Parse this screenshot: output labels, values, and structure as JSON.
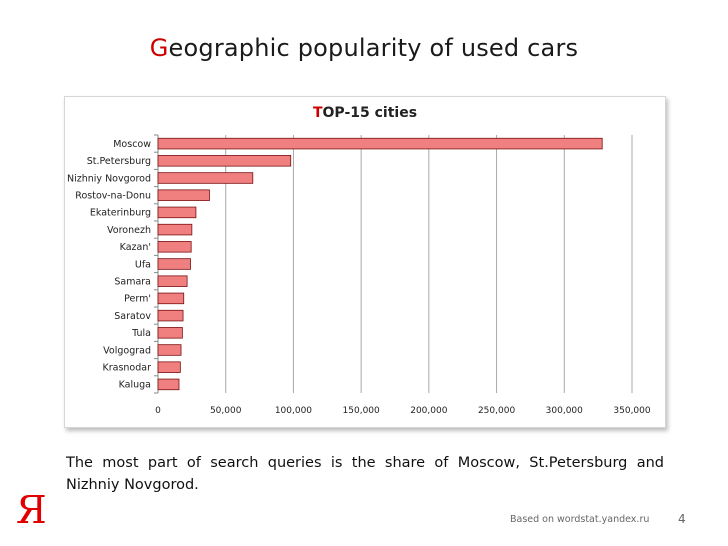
{
  "slide": {
    "title_first": "G",
    "title_rest": "eographic popularity of used cars",
    "summary": "The most part of search queries is the share of Moscow, St.Petersburg and Nizhniy Novgorod.",
    "logo": "Я",
    "source": "Based on wordstat.yandex.ru",
    "page_number": "4"
  },
  "chart_data": {
    "type": "bar",
    "orientation": "horizontal",
    "title": "TOP-15 cities",
    "title_first": "T",
    "title_rest": "OP-15 cities",
    "categories": [
      "Moscow",
      "St.Petersburg",
      "Nizhniy Novgorod",
      "Rostov-na-Donu",
      "Ekaterinburg",
      "Voronezh",
      "Kazan'",
      "Ufa",
      "Samara",
      "Perm'",
      "Saratov",
      "Tula",
      "Volgograd",
      "Krasnodar",
      "Kaluga"
    ],
    "values": [
      328000,
      98000,
      70000,
      38000,
      28000,
      25000,
      24500,
      24000,
      21500,
      19000,
      18500,
      18000,
      17000,
      16500,
      15500
    ],
    "xlim": [
      0,
      350000
    ],
    "xticks": [
      0,
      50000,
      100000,
      150000,
      200000,
      250000,
      300000,
      350000
    ],
    "xtick_labels": [
      "0",
      "50,000",
      "100,000",
      "150,000",
      "200,000",
      "250,000",
      "300,000",
      "350,000"
    ],
    "xlabel": "",
    "ylabel": "",
    "grid": "vertical",
    "legend": "none",
    "bar_color": "#f08080",
    "bar_edge": "#7a1010",
    "grid_color": "#a8a8a8"
  }
}
